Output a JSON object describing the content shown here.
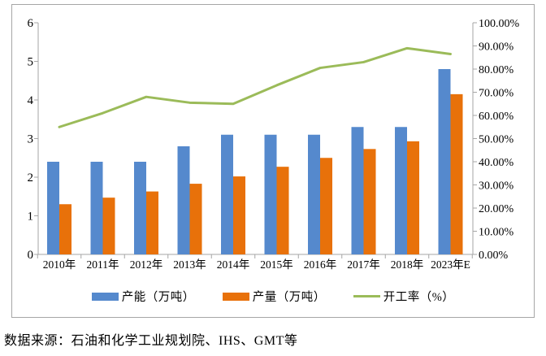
{
  "source_note": "数据来源：石油和化学工业规划院、IHS、GMT等",
  "colors": {
    "capacity": "#5589CD",
    "output": "#E8710A",
    "utilization": "#9BBB59",
    "axis": "#A6A6A6",
    "text": "#000000"
  },
  "chart_data": {
    "type": "bar",
    "subtype": "bar+line-dual-axis",
    "title": "",
    "xlabel": "",
    "ylabel_left": "",
    "ylabel_right": "",
    "grid": false,
    "legend_position": "bottom",
    "categories": [
      "2010年",
      "2011年",
      "2012年",
      "2013年",
      "2014年",
      "2015年",
      "2016年",
      "2017年",
      "2018年",
      "2023年E"
    ],
    "series": [
      {
        "name": "产能（万吨）",
        "type": "bar",
        "axis": "left",
        "color_key": "capacity",
        "values": [
          2.4,
          2.4,
          2.4,
          2.8,
          3.1,
          3.1,
          3.1,
          3.3,
          3.3,
          4.8
        ]
      },
      {
        "name": "产量（万吨）",
        "type": "bar",
        "axis": "left",
        "color_key": "output",
        "values": [
          1.3,
          1.47,
          1.63,
          1.83,
          2.02,
          2.27,
          2.5,
          2.73,
          2.93,
          4.15
        ]
      },
      {
        "name": "开工率（%）",
        "type": "line",
        "axis": "right",
        "color_key": "utilization",
        "values": [
          55,
          61,
          68,
          65.5,
          65,
          73,
          80.5,
          83,
          89,
          86.5
        ]
      }
    ],
    "left_axis": {
      "min": 0,
      "max": 6,
      "ticks": [
        "0",
        "1",
        "2",
        "3",
        "4",
        "5",
        "6"
      ]
    },
    "right_axis": {
      "min": 0,
      "max": 100,
      "ticks": [
        "0.00%",
        "10.00%",
        "20.00%",
        "30.00%",
        "40.00%",
        "50.00%",
        "60.00%",
        "70.00%",
        "80.00%",
        "90.00%",
        "100.00%"
      ]
    }
  }
}
